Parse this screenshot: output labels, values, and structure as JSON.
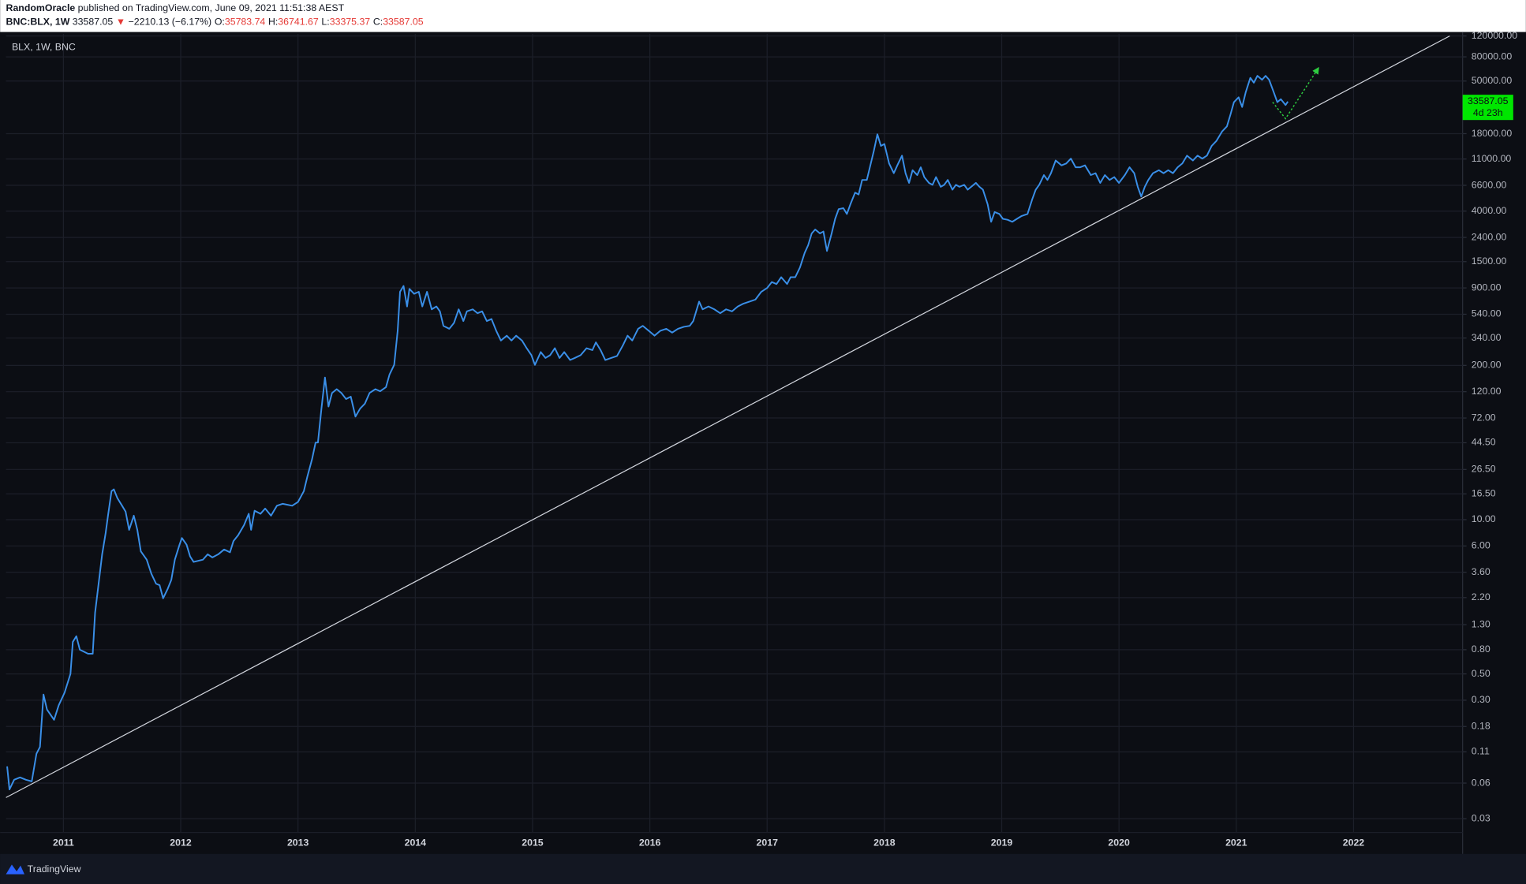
{
  "header": {
    "author": "RandomOracle",
    "published": "published on TradingView.com, June 09, 2021 11:51:38 AEST",
    "symbol": "BNC:BLX, 1W",
    "last": 33587.05,
    "direction": "▼",
    "change": "−2210.13 (−6.17%)",
    "ohlc": [
      {
        "label": "O:",
        "value": 35783.74
      },
      {
        "label": "H:",
        "value": 36741.67
      },
      {
        "label": "L:",
        "value": 33375.37
      },
      {
        "label": "C:",
        "value": 33587.05
      }
    ]
  },
  "chart_data": {
    "type": "line",
    "log_scale": true,
    "grid": true,
    "xlim": [
      2010.51,
      2022.93
    ],
    "xticks": [
      2011,
      2012,
      2013,
      2014,
      2015,
      2016,
      2017,
      2018,
      2019,
      2020,
      2021,
      2022
    ],
    "ylim": [
      0.023,
      124600
    ],
    "yticks": [
      0.03,
      0.06,
      0.11,
      0.18,
      {
        "value": 0.3,
        "label": "0.30"
      },
      {
        "value": 0.5,
        "label": "0.50"
      },
      {
        "value": 0.8,
        "label": "0.80"
      },
      {
        "value": 1.3,
        "label": "1.30"
      },
      {
        "value": 2.2,
        "label": "2.20"
      },
      {
        "value": 3.6,
        "label": "3.60"
      },
      {
        "value": 6,
        "label": "6.00"
      },
      {
        "value": 10,
        "label": "10.00"
      },
      {
        "value": 16.5,
        "label": "16.50"
      },
      {
        "value": 26.5,
        "label": "26.50"
      },
      {
        "value": 44.5,
        "label": "44.50"
      },
      {
        "value": 72,
        "label": "72.00"
      },
      {
        "value": 120,
        "label": "120.00"
      },
      {
        "value": 200,
        "label": "200.00"
      },
      {
        "value": 340,
        "label": "340.00"
      },
      {
        "value": 540,
        "label": "540.00"
      },
      {
        "value": 900,
        "label": "900.00"
      },
      {
        "value": 1500,
        "label": "1500.00"
      },
      {
        "value": 2400,
        "label": "2400.00"
      },
      {
        "value": 4000,
        "label": "4000.00"
      },
      {
        "value": 6600,
        "label": "6600.00"
      },
      {
        "value": 11000,
        "label": "11000.00"
      },
      {
        "value": 18000,
        "label": "18000.00"
      },
      {
        "value": 50000,
        "label": "50000.00"
      },
      {
        "value": 80000,
        "label": "80000.00"
      },
      {
        "value": 120000,
        "label": "120000.00"
      }
    ],
    "x": [
      2010.52,
      2010.54,
      2010.58,
      2010.63,
      2010.68,
      2010.73,
      2010.77,
      2010.8,
      2010.83,
      2010.86,
      2010.92,
      2010.96,
      2011.01,
      2011.06,
      2011.08,
      2011.11,
      2011.14,
      2011.21,
      2011.25,
      2011.27,
      2011.31,
      2011.33,
      2011.36,
      2011.38,
      2011.41,
      2011.43,
      2011.46,
      2011.5,
      2011.53,
      2011.56,
      2011.6,
      2011.63,
      2011.66,
      2011.71,
      2011.75,
      2011.79,
      2011.82,
      2011.85,
      2011.89,
      2011.92,
      2011.95,
      2011.99,
      2012.01,
      2012.05,
      2012.08,
      2012.11,
      2012.19,
      2012.23,
      2012.27,
      2012.32,
      2012.37,
      2012.42,
      2012.45,
      2012.49,
      2012.54,
      2012.58,
      2012.6,
      2012.63,
      2012.68,
      2012.72,
      2012.77,
      2012.82,
      2012.87,
      2012.95,
      2013.0,
      2013.05,
      2013.08,
      2013.12,
      2013.15,
      2013.17,
      2013.2,
      2013.23,
      2013.26,
      2013.29,
      2013.33,
      2013.37,
      2013.41,
      2013.45,
      2013.49,
      2013.53,
      2013.57,
      2013.61,
      2013.66,
      2013.7,
      2013.75,
      2013.78,
      2013.82,
      2013.85,
      2013.87,
      2013.9,
      2013.93,
      2013.95,
      2013.99,
      2014.03,
      2014.06,
      2014.1,
      2014.14,
      2014.18,
      2014.21,
      2014.24,
      2014.29,
      2014.33,
      2014.37,
      2014.41,
      2014.44,
      2014.49,
      2014.53,
      2014.57,
      2014.61,
      2014.65,
      2014.69,
      2014.73,
      2014.78,
      2014.82,
      2014.86,
      2014.91,
      2014.95,
      2014.99,
      2015.02,
      2015.07,
      2015.11,
      2015.15,
      2015.19,
      2015.23,
      2015.27,
      2015.32,
      2015.36,
      2015.41,
      2015.46,
      2015.51,
      2015.54,
      2015.58,
      2015.62,
      2015.67,
      2015.72,
      2015.77,
      2015.81,
      2015.85,
      2015.9,
      2015.94,
      2015.99,
      2016.04,
      2016.09,
      2016.14,
      2016.19,
      2016.24,
      2016.29,
      2016.34,
      2016.37,
      2016.42,
      2016.45,
      2016.5,
      2016.55,
      2016.6,
      2016.65,
      2016.7,
      2016.75,
      2016.8,
      2016.85,
      2016.9,
      2016.95,
      2017.0,
      2017.04,
      2017.08,
      2017.12,
      2017.17,
      2017.2,
      2017.24,
      2017.28,
      2017.32,
      2017.35,
      2017.38,
      2017.41,
      2017.45,
      2017.48,
      2017.51,
      2017.55,
      2017.58,
      2017.61,
      2017.65,
      2017.68,
      2017.71,
      2017.75,
      2017.78,
      2017.81,
      2017.85,
      2017.88,
      2017.91,
      2017.94,
      2017.97,
      2018.0,
      2018.04,
      2018.08,
      2018.11,
      2018.15,
      2018.18,
      2018.21,
      2018.24,
      2018.28,
      2018.31,
      2018.34,
      2018.38,
      2018.41,
      2018.44,
      2018.48,
      2018.51,
      2018.54,
      2018.58,
      2018.61,
      2018.64,
      2018.68,
      2018.71,
      2018.74,
      2018.78,
      2018.81,
      2018.84,
      2018.88,
      2018.91,
      2018.94,
      2018.98,
      2019.01,
      2019.05,
      2019.09,
      2019.13,
      2019.17,
      2019.22,
      2019.26,
      2019.29,
      2019.32,
      2019.36,
      2019.39,
      2019.42,
      2019.46,
      2019.51,
      2019.55,
      2019.59,
      2019.63,
      2019.67,
      2019.71,
      2019.76,
      2019.8,
      2019.84,
      2019.88,
      2019.92,
      2019.96,
      2020.0,
      2020.05,
      2020.09,
      2020.13,
      2020.16,
      2020.19,
      2020.22,
      2020.25,
      2020.29,
      2020.34,
      2020.38,
      2020.42,
      2020.46,
      2020.5,
      2020.54,
      2020.58,
      2020.63,
      2020.67,
      2020.71,
      2020.75,
      2020.79,
      2020.83,
      2020.88,
      2020.92,
      2020.95,
      2020.98,
      2021.02,
      2021.05,
      2021.08,
      2021.12,
      2021.15,
      2021.18,
      2021.22,
      2021.25,
      2021.28,
      2021.32,
      2021.35,
      2021.38,
      2021.42,
      2021.44
    ],
    "series": [
      {
        "name": "BLX, 1W, BNC",
        "color": "#3a8fe8",
        "values": [
          0.083,
          0.053,
          0.064,
          0.067,
          0.064,
          0.062,
          0.106,
          0.121,
          0.335,
          0.25,
          0.205,
          0.272,
          0.348,
          0.5,
          0.93,
          1.04,
          0.8,
          0.74,
          0.74,
          1.64,
          3.49,
          5.09,
          7.71,
          10.8,
          17.4,
          18,
          15.2,
          13.1,
          11.7,
          8.2,
          10.8,
          8.2,
          5.4,
          4.6,
          3.49,
          2.88,
          2.8,
          2.17,
          2.62,
          3.11,
          4.6,
          6.15,
          7,
          6.15,
          4.9,
          4.4,
          4.6,
          5.1,
          4.8,
          5.1,
          5.6,
          5.3,
          6.6,
          7.4,
          9,
          11.2,
          8.2,
          11.9,
          11.2,
          12.4,
          10.8,
          13.1,
          13.6,
          13.1,
          14.1,
          17.4,
          23.1,
          32.4,
          44.7,
          44.7,
          86.5,
          158,
          90,
          117,
          126,
          117,
          104,
          109,
          74,
          86.5,
          95,
          117,
          126,
          121,
          131,
          167,
          202,
          392,
          835,
          935,
          628,
          883,
          803,
          835,
          628,
          835,
          594,
          628,
          571,
          431,
          407,
          456,
          594,
          473,
          571,
          594,
          551,
          571,
          473,
          492,
          392,
          324,
          356,
          324,
          356,
          324,
          279,
          244,
          202,
          259,
          231,
          244,
          279,
          231,
          259,
          222,
          231,
          244,
          279,
          269,
          313,
          269,
          222,
          231,
          240,
          295,
          356,
          324,
          407,
          431,
          392,
          356,
          392,
          407,
          378,
          407,
          423,
          431,
          473,
          690,
          594,
          628,
          594,
          551,
          594,
          571,
          628,
          665,
          690,
          718,
          835,
          899,
          1009,
          971,
          1109,
          971,
          1109,
          1109,
          1340,
          1778,
          2065,
          2594,
          2800,
          2594,
          2692,
          1845,
          2594,
          3443,
          4159,
          4236,
          3784,
          4571,
          5728,
          5521,
          7328,
          7328,
          9727,
          12912,
          17783,
          14191,
          14723,
          10093,
          8356,
          9727,
          11749,
          8356,
          6918,
          8851,
          8054,
          9376,
          7745,
          6918,
          6668,
          7745,
          6412,
          6668,
          7328,
          6067,
          6668,
          6412,
          6668,
          6067,
          6412,
          6918,
          6412,
          6067,
          4571,
          3251,
          3926,
          3784,
          3443,
          3381,
          3251,
          3443,
          3639,
          3784,
          5023,
          6067,
          6668,
          8054,
          7328,
          8356,
          10690,
          9727,
          10093,
          11092,
          9376,
          9376,
          9727,
          8054,
          8356,
          6918,
          8054,
          7328,
          7745,
          6918,
          8054,
          9376,
          8356,
          6412,
          5309,
          6412,
          7328,
          8356,
          8851,
          8356,
          8851,
          8356,
          9376,
          10093,
          11749,
          10690,
          11749,
          11092,
          11749,
          14191,
          15596,
          18836,
          20701,
          26002,
          33189,
          36475,
          30200,
          40087,
          53211,
          48417,
          55335,
          51286,
          55335,
          51286,
          40087,
          33189,
          35156,
          31405,
          33587.05
        ]
      }
    ],
    "trendline": {
      "color": "#d1d4dc",
      "x": [
        2010.51,
        2022.82
      ],
      "y": [
        0.0453,
        120000
      ]
    },
    "projection": {
      "color": "#2ecc40",
      "x": [
        2021.31,
        2021.42,
        2021.7
      ],
      "y": [
        33200,
        24100,
        64300
      ]
    },
    "last_price": 33587.05,
    "countdown": "4d 23h",
    "price_label_color": "#00e600"
  },
  "footer": {
    "brand": "TradingView"
  }
}
